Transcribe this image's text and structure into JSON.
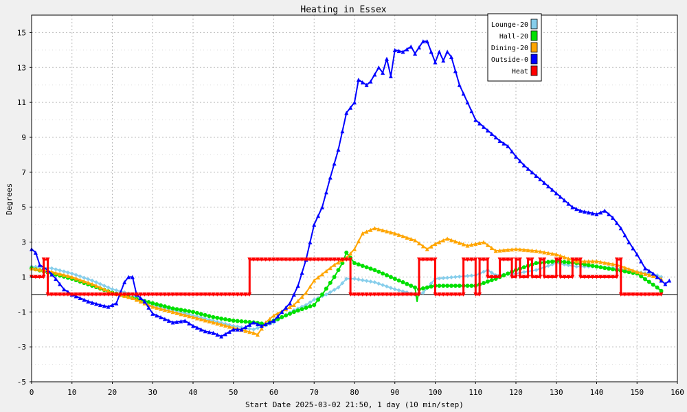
{
  "chart_data": {
    "type": "line",
    "title": "Heating in Essex",
    "xlabel": "Start Date 2025-03-02 21:50, 1 day (10 min/step)",
    "ylabel": "Degrees",
    "xlim": [
      0,
      160
    ],
    "ylim": [
      -5,
      16
    ],
    "x_ticks": [
      0,
      10,
      20,
      30,
      40,
      50,
      60,
      70,
      80,
      90,
      100,
      110,
      120,
      130,
      140,
      150,
      160
    ],
    "y_ticks": [
      -5,
      -3,
      -1,
      1,
      3,
      5,
      7,
      9,
      11,
      13,
      15
    ],
    "grid": true,
    "legend_position": "top-right",
    "series": [
      {
        "name": "Lounge-20",
        "color": "#87ceeb",
        "marker": "diamond",
        "points": [
          [
            0,
            1.6
          ],
          [
            5,
            1.5
          ],
          [
            10,
            1.2
          ],
          [
            15,
            0.8
          ],
          [
            20,
            0.3
          ],
          [
            25,
            0
          ],
          [
            30,
            -0.6
          ],
          [
            35,
            -0.9
          ],
          [
            40,
            -1.2
          ],
          [
            45,
            -1.5
          ],
          [
            50,
            -1.8
          ],
          [
            55,
            -2.0
          ],
          [
            60,
            -1.6
          ],
          [
            65,
            -0.9
          ],
          [
            68,
            -0.6
          ],
          [
            70,
            -0.3
          ],
          [
            73,
            0
          ],
          [
            76,
            0.4
          ],
          [
            78,
            0.9
          ],
          [
            80,
            0.9
          ],
          [
            85,
            0.7
          ],
          [
            90,
            0.3
          ],
          [
            95,
            0
          ],
          [
            97,
            0.1
          ],
          [
            100,
            0.9
          ],
          [
            105,
            1.0
          ],
          [
            110,
            1.1
          ],
          [
            113,
            1.4
          ],
          [
            115,
            1.1
          ],
          [
            120,
            1.2
          ],
          [
            125,
            1.4
          ],
          [
            130,
            1.8
          ],
          [
            135,
            1.6
          ],
          [
            140,
            1.6
          ],
          [
            145,
            1.5
          ],
          [
            150,
            1.3
          ],
          [
            155,
            1.1
          ],
          [
            156,
            1.0
          ]
        ]
      },
      {
        "name": "Hall-20",
        "color": "#00e000",
        "marker": "circle",
        "points": [
          [
            0,
            1.5
          ],
          [
            5,
            1.2
          ],
          [
            10,
            0.9
          ],
          [
            15,
            0.5
          ],
          [
            20,
            0.1
          ],
          [
            25,
            -0.2
          ],
          [
            30,
            -0.5
          ],
          [
            35,
            -0.8
          ],
          [
            40,
            -1.0
          ],
          [
            45,
            -1.3
          ],
          [
            50,
            -1.5
          ],
          [
            55,
            -1.6
          ],
          [
            58,
            -1.7
          ],
          [
            60,
            -1.5
          ],
          [
            65,
            -1.0
          ],
          [
            70,
            -0.6
          ],
          [
            72,
            0
          ],
          [
            75,
            1.0
          ],
          [
            77,
            1.8
          ],
          [
            78,
            2.4
          ],
          [
            79,
            2.1
          ],
          [
            80,
            1.8
          ],
          [
            85,
            1.4
          ],
          [
            90,
            0.9
          ],
          [
            95,
            0.4
          ],
          [
            95.5,
            -0.4
          ],
          [
            96,
            0.3
          ],
          [
            100,
            0.5
          ],
          [
            105,
            0.5
          ],
          [
            110,
            0.5
          ],
          [
            115,
            0.9
          ],
          [
            120,
            1.4
          ],
          [
            125,
            1.8
          ],
          [
            130,
            1.9
          ],
          [
            135,
            1.8
          ],
          [
            140,
            1.6
          ],
          [
            145,
            1.4
          ],
          [
            150,
            1.2
          ],
          [
            155,
            0.4
          ],
          [
            156,
            0.2
          ]
        ]
      },
      {
        "name": "Dining-20",
        "color": "#ffa500",
        "marker": "triangle-up",
        "points": [
          [
            0,
            1.5
          ],
          [
            5,
            1.3
          ],
          [
            10,
            1.0
          ],
          [
            15,
            0.6
          ],
          [
            20,
            0.1
          ],
          [
            25,
            -0.2
          ],
          [
            30,
            -0.7
          ],
          [
            35,
            -1.0
          ],
          [
            40,
            -1.3
          ],
          [
            45,
            -1.6
          ],
          [
            50,
            -1.9
          ],
          [
            55,
            -2.2
          ],
          [
            56,
            -2.3
          ],
          [
            58,
            -1.6
          ],
          [
            60,
            -1.2
          ],
          [
            65,
            -0.6
          ],
          [
            68,
            0.1
          ],
          [
            70,
            0.8
          ],
          [
            75,
            1.7
          ],
          [
            78,
            2.1
          ],
          [
            80,
            2.6
          ],
          [
            82,
            3.5
          ],
          [
            85,
            3.8
          ],
          [
            90,
            3.5
          ],
          [
            95,
            3.1
          ],
          [
            98,
            2.6
          ],
          [
            100,
            2.9
          ],
          [
            103,
            3.2
          ],
          [
            108,
            2.8
          ],
          [
            110,
            2.9
          ],
          [
            112,
            3.0
          ],
          [
            115,
            2.5
          ],
          [
            120,
            2.6
          ],
          [
            125,
            2.5
          ],
          [
            130,
            2.3
          ],
          [
            135,
            1.9
          ],
          [
            140,
            1.9
          ],
          [
            145,
            1.7
          ],
          [
            150,
            1.3
          ],
          [
            155,
            1.0
          ],
          [
            156,
            0.9
          ]
        ]
      },
      {
        "name": "Outside-0",
        "color": "#0000ff",
        "marker": "triangle-up",
        "points": [
          [
            0,
            2.6
          ],
          [
            1,
            2.4
          ],
          [
            2,
            1.7
          ],
          [
            4,
            1.4
          ],
          [
            6,
            0.9
          ],
          [
            8,
            0.3
          ],
          [
            10,
            0
          ],
          [
            14,
            -0.4
          ],
          [
            17,
            -0.6
          ],
          [
            19,
            -0.7
          ],
          [
            21,
            -0.5
          ],
          [
            23,
            0.7
          ],
          [
            24,
            1.0
          ],
          [
            25,
            1.0
          ],
          [
            26,
            0
          ],
          [
            28,
            -0.4
          ],
          [
            30,
            -1.1
          ],
          [
            33,
            -1.4
          ],
          [
            35,
            -1.6
          ],
          [
            38,
            -1.5
          ],
          [
            40,
            -1.8
          ],
          [
            43,
            -2.1
          ],
          [
            45,
            -2.2
          ],
          [
            47,
            -2.4
          ],
          [
            50,
            -2.0
          ],
          [
            52,
            -2.0
          ],
          [
            55,
            -1.6
          ],
          [
            57,
            -1.8
          ],
          [
            60,
            -1.5
          ],
          [
            62,
            -1.0
          ],
          [
            64,
            -0.5
          ],
          [
            66,
            0.5
          ],
          [
            68,
            2.0
          ],
          [
            70,
            4.0
          ],
          [
            72,
            5.0
          ],
          [
            74,
            6.7
          ],
          [
            76,
            8.3
          ],
          [
            78,
            10.4
          ],
          [
            80,
            11.0
          ],
          [
            81,
            12.3
          ],
          [
            83,
            12.0
          ],
          [
            84,
            12.2
          ],
          [
            86,
            13.0
          ],
          [
            87,
            12.7
          ],
          [
            88,
            13.5
          ],
          [
            89,
            12.5
          ],
          [
            90,
            14.0
          ],
          [
            92,
            13.9
          ],
          [
            94,
            14.2
          ],
          [
            95,
            13.8
          ],
          [
            97,
            14.5
          ],
          [
            98,
            14.5
          ],
          [
            100,
            13.3
          ],
          [
            101,
            13.9
          ],
          [
            102,
            13.4
          ],
          [
            103,
            13.9
          ],
          [
            104,
            13.6
          ],
          [
            106,
            12.0
          ],
          [
            108,
            11.0
          ],
          [
            110,
            10.0
          ],
          [
            112,
            9.6
          ],
          [
            114,
            9.2
          ],
          [
            116,
            8.8
          ],
          [
            118,
            8.5
          ],
          [
            120,
            7.9
          ],
          [
            122,
            7.4
          ],
          [
            124,
            7.0
          ],
          [
            126,
            6.6
          ],
          [
            128,
            6.2
          ],
          [
            130,
            5.8
          ],
          [
            132,
            5.4
          ],
          [
            134,
            5.0
          ],
          [
            136,
            4.8
          ],
          [
            138,
            4.7
          ],
          [
            140,
            4.6
          ],
          [
            142,
            4.8
          ],
          [
            144,
            4.4
          ],
          [
            146,
            3.8
          ],
          [
            148,
            3.0
          ],
          [
            150,
            2.3
          ],
          [
            152,
            1.5
          ],
          [
            154,
            1.2
          ],
          [
            156,
            0.8
          ],
          [
            157,
            0.6
          ],
          [
            158,
            0.8
          ]
        ]
      },
      {
        "name": "Heat",
        "color": "#ff0000",
        "marker": "triangle-down",
        "step": true,
        "points": [
          [
            0,
            1
          ],
          [
            3,
            1
          ],
          [
            3,
            2
          ],
          [
            4,
            2
          ],
          [
            4,
            0
          ],
          [
            54,
            0
          ],
          [
            54,
            2
          ],
          [
            79,
            2
          ],
          [
            79,
            0
          ],
          [
            96,
            0
          ],
          [
            96,
            2
          ],
          [
            100,
            2
          ],
          [
            100,
            0
          ],
          [
            107,
            0
          ],
          [
            107,
            2
          ],
          [
            110,
            2
          ],
          [
            110,
            0
          ],
          [
            111,
            0
          ],
          [
            111,
            2
          ],
          [
            113,
            2
          ],
          [
            113,
            1
          ],
          [
            116,
            1
          ],
          [
            116,
            2
          ],
          [
            119,
            2
          ],
          [
            119,
            1
          ],
          [
            120,
            1
          ],
          [
            120,
            2
          ],
          [
            121,
            2
          ],
          [
            121,
            1
          ],
          [
            123,
            1
          ],
          [
            123,
            2
          ],
          [
            124,
            2
          ],
          [
            124,
            1
          ],
          [
            126,
            1
          ],
          [
            126,
            2
          ],
          [
            127,
            2
          ],
          [
            127,
            1
          ],
          [
            130,
            1
          ],
          [
            130,
            2
          ],
          [
            131,
            2
          ],
          [
            131,
            1
          ],
          [
            134,
            1
          ],
          [
            134,
            2
          ],
          [
            136,
            2
          ],
          [
            136,
            1
          ],
          [
            145,
            1
          ],
          [
            145,
            2
          ],
          [
            146,
            2
          ],
          [
            146,
            0
          ],
          [
            156,
            0
          ]
        ]
      }
    ]
  }
}
